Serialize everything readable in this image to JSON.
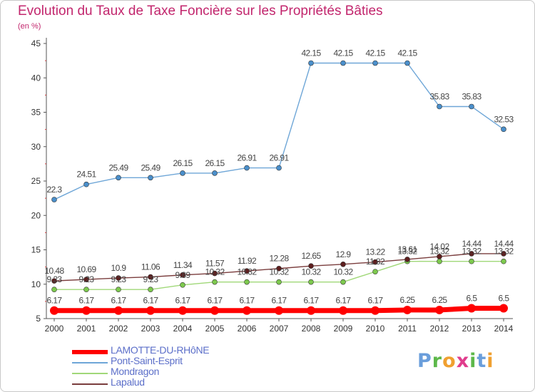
{
  "header": {
    "title": "Evolution du Taux de Taxe Foncière sur les Propriétés Bâties",
    "subtitle": "(en %)"
  },
  "logo": {
    "text": "Proxiti",
    "letters": [
      "P",
      "r",
      "o",
      "x",
      "i",
      "t",
      "i"
    ],
    "colors": [
      "#6a9edb",
      "#5db84a",
      "#f0a030",
      "#e03c8c",
      "#5db84a",
      "#6a9edb",
      "#f0a030"
    ]
  },
  "chart_data": {
    "type": "line",
    "title": "Evolution du Taux de Taxe Foncière sur les Propriétés Bâties",
    "ylabel": "(en %)",
    "xlabel": "",
    "ylim": [
      5,
      45
    ],
    "yticks": [
      5,
      10,
      15,
      20,
      25,
      30,
      35,
      40,
      45
    ],
    "grid": false,
    "legend": "bottom-left",
    "categories": [
      "2000",
      "2001",
      "2002",
      "2003",
      "2004",
      "2005",
      "2006",
      "2007",
      "2008",
      "2009",
      "2010",
      "2011",
      "2012",
      "2013",
      "2014"
    ],
    "series": [
      {
        "name": "Pont-Saint-Esprit",
        "color": "#6ea6d7",
        "marker": "#4a8fcb",
        "values": [
          22.3,
          24.51,
          25.49,
          25.49,
          26.15,
          26.15,
          26.91,
          26.91,
          42.15,
          42.15,
          42.15,
          42.15,
          35.83,
          35.83,
          32.53
        ],
        "labels": [
          "22.3",
          "24.51",
          "25.49",
          "25.49",
          "26.15",
          "26.15",
          "26.91",
          "26.91",
          "42.15",
          "42.15",
          "42.15",
          "42.15",
          "35.83",
          "35.83",
          "32.53"
        ]
      },
      {
        "name": "Mondragon",
        "color": "#a0d878",
        "marker": "#7dc94e",
        "values": [
          9.23,
          9.23,
          9.23,
          9.23,
          9.89,
          10.32,
          10.32,
          10.32,
          10.32,
          10.32,
          11.82,
          13.32,
          13.32,
          13.32,
          13.32
        ],
        "labels": [
          "9.23",
          "9.23",
          "9.23",
          "9.23",
          "9.89",
          "10.32",
          "10.32",
          "10.32",
          "10.32",
          "10.32",
          "11.82",
          "13.32",
          "13.32",
          "13.32",
          "13.32"
        ]
      },
      {
        "name": "Lapalud",
        "color": "#7a3d3d",
        "marker": "#5e1e1e",
        "values": [
          10.48,
          10.69,
          10.9,
          11.06,
          11.34,
          11.57,
          11.92,
          12.28,
          12.65,
          12.9,
          13.22,
          13.61,
          14.02,
          14.44,
          14.44
        ],
        "labels": [
          "10.48",
          "10.69",
          "10.9",
          "11.06",
          "11.34",
          "11.57",
          "11.92",
          "12.28",
          "12.65",
          "12.9",
          "13.22",
          "13.61",
          "14.02",
          "14.44",
          "14.44"
        ]
      },
      {
        "name": "LAMOTTE-DU-RHôNE",
        "color": "#ff0000",
        "marker": "#ff0000",
        "values": [
          6.17,
          6.17,
          6.17,
          6.17,
          6.17,
          6.17,
          6.17,
          6.17,
          6.17,
          6.17,
          6.17,
          6.25,
          6.25,
          6.5,
          6.5
        ],
        "labels": [
          "6.17",
          "6.17",
          "6.17",
          "6.17",
          "6.17",
          "6.17",
          "6.17",
          "6.17",
          "6.17",
          "6.17",
          "6.17",
          "6.25",
          "6.25",
          "6.5",
          "6.5"
        ]
      }
    ],
    "legend_order": [
      "LAMOTTE-DU-RHôNE",
      "Pont-Saint-Esprit",
      "Mondragon",
      "Lapalud"
    ]
  }
}
